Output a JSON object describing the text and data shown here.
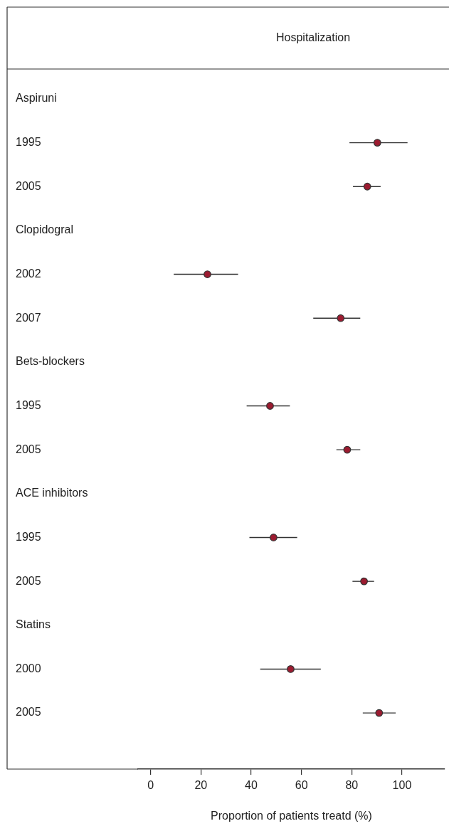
{
  "chart_data": {
    "type": "scatter",
    "orientation": "horizontal",
    "title": "Hospitalization",
    "xlabel": "Proportion of patients treatd (%)",
    "categories": [
      "Aspiruni",
      "1995",
      "2005",
      "Clopidogral",
      "2002",
      "2007",
      "Bets-blockers",
      "1995",
      "2005",
      "ACE inhibitors",
      "1995",
      "2005",
      "Statins",
      "2000",
      "2005"
    ],
    "values": [
      null,
      90.2,
      86.2,
      null,
      22.6,
      75.6,
      null,
      47.5,
      78.2,
      null,
      48.9,
      84.9,
      null,
      55.7,
      90.9
    ],
    "errors": [
      null,
      [
        79.1,
        102.2
      ],
      [
        80.5,
        91.5
      ],
      null,
      [
        9.2,
        34.8
      ],
      [
        64.7,
        83.4
      ],
      null,
      [
        38.2,
        55.4
      ],
      [
        73.9,
        83.4
      ],
      null,
      [
        39.3,
        58.3
      ],
      [
        80.3,
        88.9
      ],
      null,
      [
        43.6,
        67.7
      ],
      [
        84.4,
        97.5
      ]
    ],
    "color": "#9b1b30",
    "marker": "circle",
    "xlim": [
      -5,
      117
    ],
    "xticks": [
      0,
      20,
      40,
      60,
      80,
      100
    ]
  }
}
